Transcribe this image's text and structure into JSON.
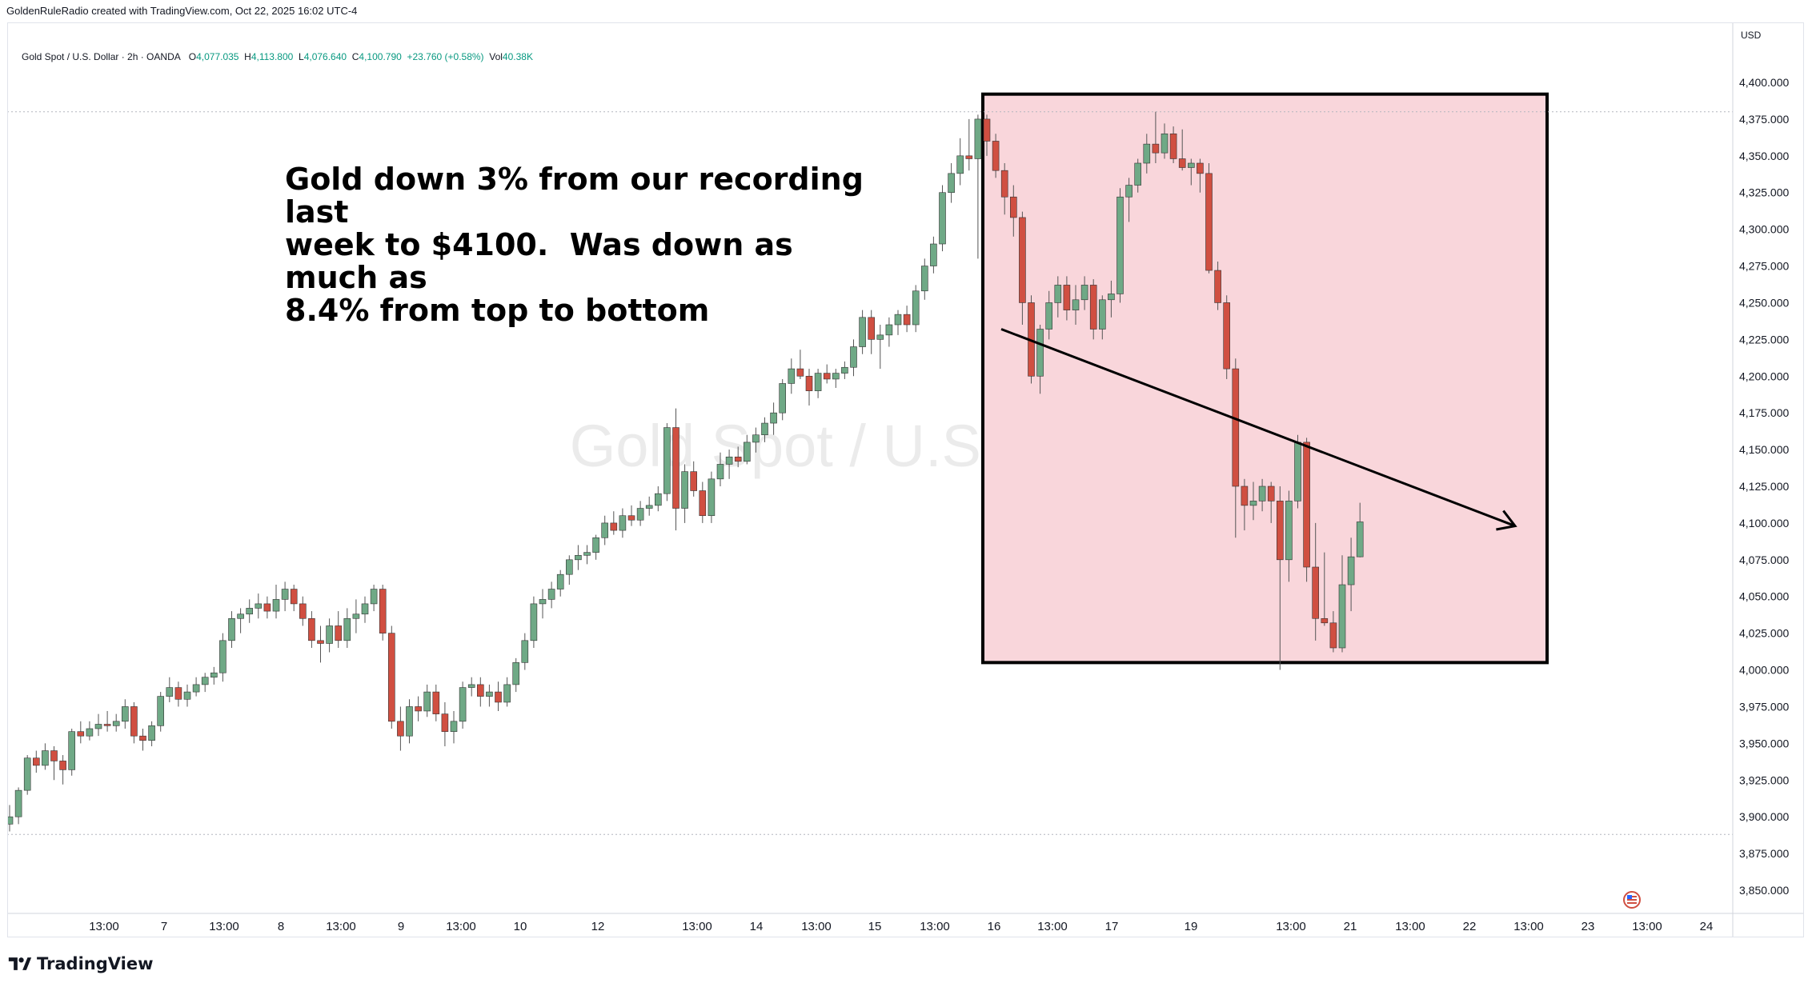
{
  "header": {
    "credit": "GoldenRuleRadio created with TradingView.com, Oct 22, 2025 16:02 UTC-4"
  },
  "legend": {
    "symbol": "Gold Spot / U.S. Dollar · 2h · OANDA",
    "open_label": "O",
    "open": "4,077.035",
    "high_label": "H",
    "high": "4,113.800",
    "low_label": "L",
    "low": "4,076.640",
    "close_label": "C",
    "close": "4,100.790",
    "change": "+23.760 (+0.58%)",
    "vol_label": "Vol",
    "vol": "40.38K"
  },
  "watermark": "Gold Spot / U.S. Dollar",
  "annotation": "Gold down 3% from our recording last\nweek to $4100.  Was down as much as\n8.4% from top to bottom",
  "footer": {
    "brand": "TradingView"
  },
  "colors": {
    "up": "#6fa986",
    "down": "#d04f41",
    "highlight_fill": "#f9d6db",
    "highlight_border": "#000000",
    "watermark": "#ebebeb"
  },
  "icons": {
    "flag": "us-flag-icon",
    "logo": "tradingview-logo-icon"
  },
  "chart_data": {
    "type": "candlestick",
    "currency": "USD",
    "ylim": [
      3830,
      4430
    ],
    "y_ticks": [
      3850,
      3875,
      3900,
      3925,
      3950,
      3975,
      4000,
      4025,
      4050,
      4075,
      4100,
      4125,
      4150,
      4175,
      4200,
      4225,
      4250,
      4275,
      4300,
      4325,
      4350,
      4375,
      4400
    ],
    "x_ticks": [
      "13:00",
      "7",
      "13:00",
      "8",
      "13:00",
      "9",
      "13:00",
      "10",
      "12",
      "13:00",
      "14",
      "13:00",
      "15",
      "13:00",
      "16",
      "13:00",
      "17",
      "19",
      "13:00",
      "21",
      "13:00",
      "22",
      "13:00",
      "23",
      "13:00",
      "24"
    ],
    "candles": [
      [
        3895,
        3908,
        3890,
        3900
      ],
      [
        3900,
        3920,
        3895,
        3918
      ],
      [
        3918,
        3942,
        3915,
        3940
      ],
      [
        3940,
        3945,
        3930,
        3935
      ],
      [
        3935,
        3950,
        3932,
        3945
      ],
      [
        3945,
        3948,
        3925,
        3938
      ],
      [
        3938,
        3942,
        3922,
        3932
      ],
      [
        3932,
        3960,
        3928,
        3958
      ],
      [
        3958,
        3965,
        3950,
        3955
      ],
      [
        3955,
        3965,
        3952,
        3960
      ],
      [
        3960,
        3970,
        3955,
        3963
      ],
      [
        3963,
        3972,
        3958,
        3962
      ],
      [
        3962,
        3970,
        3958,
        3965
      ],
      [
        3965,
        3980,
        3960,
        3975
      ],
      [
        3975,
        3978,
        3950,
        3955
      ],
      [
        3955,
        3960,
        3945,
        3952
      ],
      [
        3952,
        3965,
        3948,
        3962
      ],
      [
        3962,
        3985,
        3958,
        3982
      ],
      [
        3982,
        3995,
        3978,
        3988
      ],
      [
        3988,
        3992,
        3975,
        3980
      ],
      [
        3980,
        3990,
        3975,
        3985
      ],
      [
        3985,
        3995,
        3982,
        3990
      ],
      [
        3990,
        3998,
        3985,
        3995
      ],
      [
        3995,
        4002,
        3990,
        3998
      ],
      [
        3998,
        4025,
        3992,
        4020
      ],
      [
        4020,
        4040,
        4015,
        4035
      ],
      [
        4035,
        4042,
        4025,
        4038
      ],
      [
        4038,
        4048,
        4032,
        4042
      ],
      [
        4042,
        4052,
        4035,
        4045
      ],
      [
        4045,
        4050,
        4035,
        4040
      ],
      [
        4040,
        4058,
        4035,
        4048
      ],
      [
        4048,
        4060,
        4040,
        4055
      ],
      [
        4055,
        4058,
        4040,
        4045
      ],
      [
        4045,
        4050,
        4030,
        4035
      ],
      [
        4035,
        4040,
        4015,
        4020
      ],
      [
        4020,
        4030,
        4005,
        4018
      ],
      [
        4018,
        4035,
        4012,
        4030
      ],
      [
        4030,
        4040,
        4015,
        4020
      ],
      [
        4020,
        4042,
        4015,
        4035
      ],
      [
        4035,
        4048,
        4025,
        4038
      ],
      [
        4038,
        4050,
        4032,
        4045
      ],
      [
        4045,
        4058,
        4040,
        4055
      ],
      [
        4055,
        4058,
        4020,
        4025
      ],
      [
        4025,
        4030,
        3960,
        3965
      ],
      [
        3965,
        3975,
        3945,
        3955
      ],
      [
        3955,
        3980,
        3950,
        3975
      ],
      [
        3975,
        3982,
        3965,
        3972
      ],
      [
        3972,
        3990,
        3968,
        3985
      ],
      [
        3985,
        3990,
        3965,
        3970
      ],
      [
        3970,
        3978,
        3948,
        3958
      ],
      [
        3958,
        3972,
        3950,
        3965
      ],
      [
        3965,
        3992,
        3960,
        3988
      ],
      [
        3988,
        3995,
        3982,
        3990
      ],
      [
        3990,
        3995,
        3975,
        3982
      ],
      [
        3982,
        3990,
        3975,
        3985
      ],
      [
        3985,
        3992,
        3972,
        3978
      ],
      [
        3978,
        3995,
        3975,
        3990
      ],
      [
        3990,
        4008,
        3985,
        4005
      ],
      [
        4005,
        4025,
        4000,
        4020
      ],
      [
        4020,
        4050,
        4015,
        4045
      ],
      [
        4045,
        4055,
        4035,
        4048
      ],
      [
        4048,
        4060,
        4042,
        4055
      ],
      [
        4055,
        4068,
        4050,
        4065
      ],
      [
        4065,
        4078,
        4058,
        4075
      ],
      [
        4075,
        4085,
        4068,
        4078
      ],
      [
        4078,
        4085,
        4072,
        4080
      ],
      [
        4080,
        4092,
        4075,
        4090
      ],
      [
        4090,
        4105,
        4085,
        4100
      ],
      [
        4100,
        4108,
        4092,
        4095
      ],
      [
        4095,
        4110,
        4090,
        4105
      ],
      [
        4105,
        4112,
        4098,
        4102
      ],
      [
        4102,
        4115,
        4098,
        4110
      ],
      [
        4110,
        4118,
        4105,
        4112
      ],
      [
        4112,
        4125,
        4108,
        4120
      ],
      [
        4120,
        4168,
        4115,
        4165
      ],
      [
        4165,
        4178,
        4095,
        4110
      ],
      [
        4110,
        4140,
        4100,
        4135
      ],
      [
        4135,
        4142,
        4118,
        4122
      ],
      [
        4122,
        4128,
        4100,
        4105
      ],
      [
        4105,
        4135,
        4100,
        4130
      ],
      [
        4130,
        4148,
        4125,
        4140
      ],
      [
        4140,
        4150,
        4130,
        4145
      ],
      [
        4145,
        4152,
        4138,
        4142
      ],
      [
        4142,
        4160,
        4140,
        4155
      ],
      [
        4155,
        4165,
        4148,
        4160
      ],
      [
        4160,
        4172,
        4155,
        4168
      ],
      [
        4168,
        4182,
        4160,
        4175
      ],
      [
        4175,
        4198,
        4170,
        4195
      ],
      [
        4195,
        4212,
        4188,
        4205
      ],
      [
        4205,
        4218,
        4198,
        4200
      ],
      [
        4200,
        4205,
        4180,
        4190
      ],
      [
        4190,
        4205,
        4185,
        4202
      ],
      [
        4202,
        4208,
        4195,
        4198
      ],
      [
        4198,
        4205,
        4192,
        4202
      ],
      [
        4202,
        4210,
        4198,
        4206
      ],
      [
        4206,
        4225,
        4200,
        4220
      ],
      [
        4220,
        4245,
        4215,
        4240
      ],
      [
        4240,
        4245,
        4215,
        4225
      ],
      [
        4225,
        4235,
        4205,
        4228
      ],
      [
        4228,
        4240,
        4220,
        4235
      ],
      [
        4235,
        4245,
        4228,
        4242
      ],
      [
        4242,
        4248,
        4230,
        4235
      ],
      [
        4235,
        4262,
        4230,
        4258
      ],
      [
        4258,
        4280,
        4252,
        4275
      ],
      [
        4275,
        4295,
        4270,
        4290
      ],
      [
        4290,
        4330,
        4285,
        4325
      ],
      [
        4325,
        4345,
        4318,
        4338
      ],
      [
        4338,
        4362,
        4330,
        4350
      ],
      [
        4350,
        4375,
        4340,
        4348
      ],
      [
        4348,
        4378,
        4280,
        4375
      ],
      [
        4375,
        4378,
        4350,
        4360
      ],
      [
        4360,
        4365,
        4335,
        4340
      ],
      [
        4340,
        4345,
        4310,
        4322
      ],
      [
        4322,
        4330,
        4295,
        4308
      ],
      [
        4308,
        4312,
        4235,
        4250
      ],
      [
        4250,
        4255,
        4195,
        4200
      ],
      [
        4200,
        4235,
        4188,
        4232
      ],
      [
        4232,
        4258,
        4225,
        4250
      ],
      [
        4250,
        4268,
        4240,
        4262
      ],
      [
        4262,
        4268,
        4238,
        4245
      ],
      [
        4245,
        4262,
        4235,
        4252
      ],
      [
        4252,
        4268,
        4245,
        4262
      ],
      [
        4262,
        4266,
        4225,
        4232
      ],
      [
        4232,
        4255,
        4225,
        4252
      ],
      [
        4252,
        4265,
        4240,
        4256
      ],
      [
        4256,
        4328,
        4250,
        4322
      ],
      [
        4322,
        4335,
        4305,
        4330
      ],
      [
        4330,
        4348,
        4325,
        4345
      ],
      [
        4345,
        4365,
        4338,
        4358
      ],
      [
        4358,
        4380,
        4345,
        4352
      ],
      [
        4352,
        4372,
        4348,
        4365
      ],
      [
        4365,
        4370,
        4345,
        4348
      ],
      [
        4348,
        4368,
        4340,
        4342
      ],
      [
        4342,
        4348,
        4330,
        4345
      ],
      [
        4345,
        4348,
        4325,
        4338
      ],
      [
        4338,
        4345,
        4270,
        4272
      ],
      [
        4272,
        4278,
        4245,
        4250
      ],
      [
        4250,
        4255,
        4198,
        4205
      ],
      [
        4205,
        4212,
        4090,
        4125
      ],
      [
        4125,
        4130,
        4095,
        4112
      ],
      [
        4112,
        4128,
        4102,
        4115
      ],
      [
        4115,
        4130,
        4108,
        4125
      ],
      [
        4125,
        4128,
        4100,
        4115
      ],
      [
        4115,
        4125,
        4000,
        4075
      ],
      [
        4075,
        4122,
        4060,
        4115
      ],
      [
        4115,
        4160,
        4110,
        4155
      ],
      [
        4155,
        4158,
        4060,
        4070
      ],
      [
        4070,
        4100,
        4020,
        4035
      ],
      [
        4035,
        4080,
        4030,
        4032
      ],
      [
        4032,
        4040,
        4012,
        4015
      ],
      [
        4015,
        4078,
        4012,
        4058
      ],
      [
        4058,
        4090,
        4040,
        4077
      ],
      [
        4077,
        4113.8,
        4076.64,
        4100.79
      ]
    ],
    "highlight_box": {
      "x_from": "16",
      "x_to": "22 13:00",
      "y_from": 4005,
      "y_to": 4392
    },
    "reference_lines": [
      4380,
      3888
    ],
    "trend_arrow": {
      "from": [
        4232
      ],
      "to": [
        4098
      ]
    }
  }
}
